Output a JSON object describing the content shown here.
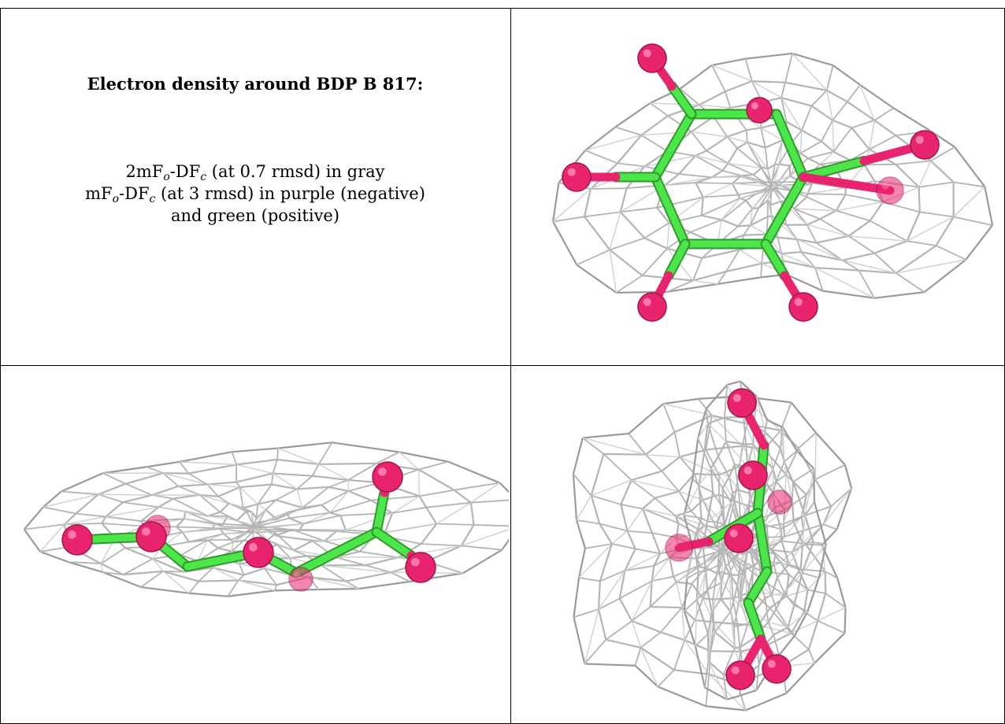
{
  "caption": {
    "title": "Electron density around BDP B 817:",
    "line1": {
      "pre": "2mF",
      "sub1": "o",
      "mid": "-DF",
      "sub2": "c",
      "post": " (at 0.7 rmsd) in gray"
    },
    "line2": {
      "pre": "mF",
      "sub1": "o",
      "mid": "-DF",
      "sub2": "c",
      "post": " (at 3 rmsd) in purple (negative)"
    },
    "line3": "and green (positive)"
  },
  "colors": {
    "mesh": "#b4b4b4",
    "bond": "#4ce64a",
    "atom": "#e8246e",
    "border": "#000000"
  }
}
